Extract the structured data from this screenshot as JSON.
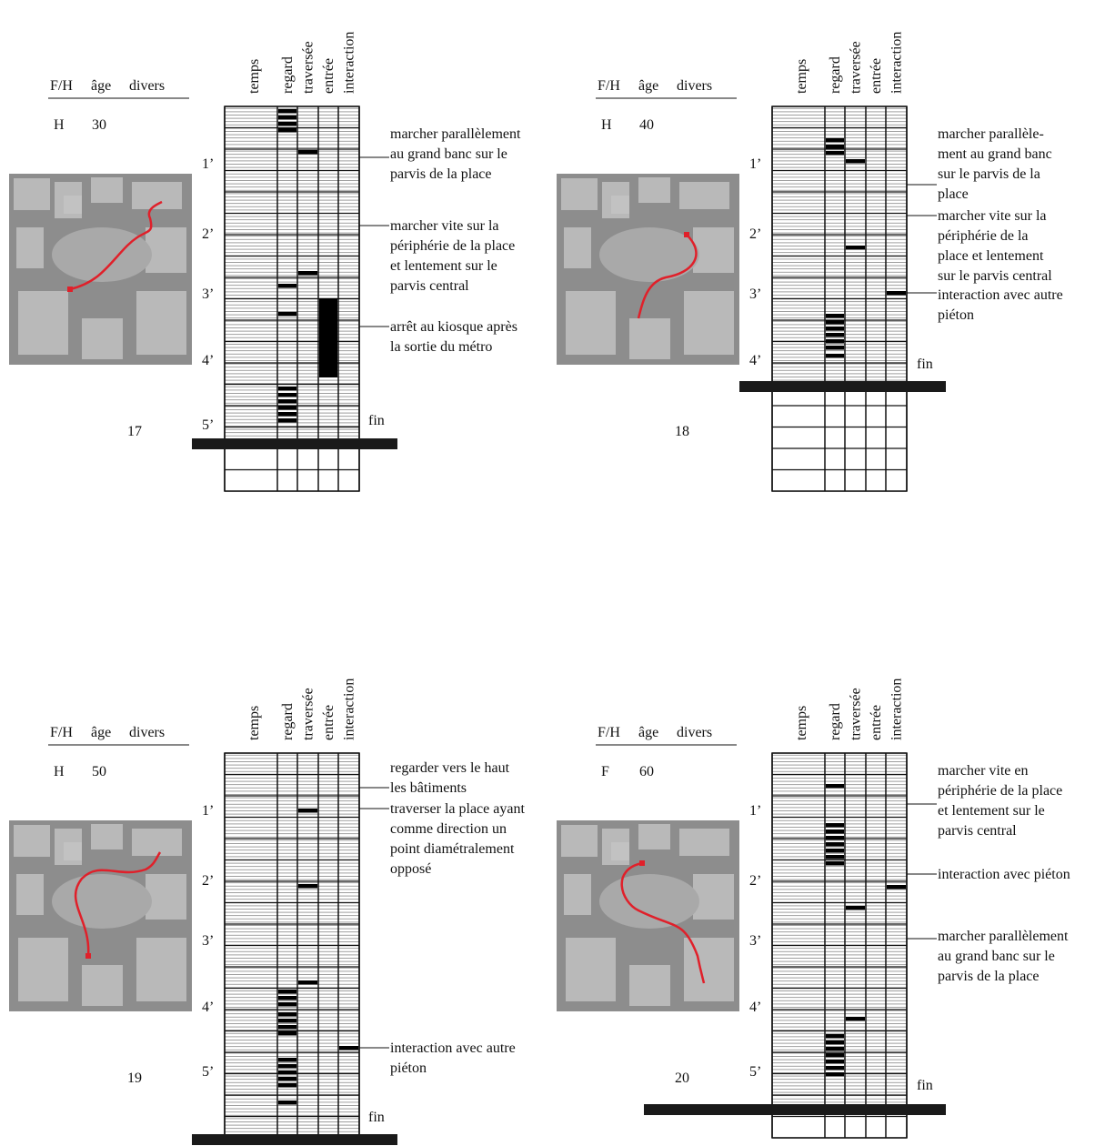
{
  "columns": [
    "temps",
    "regard",
    "traversée",
    "entrée",
    "interaction"
  ],
  "profile_headers": [
    "F/H",
    "âge",
    "divers"
  ],
  "fin": "fin",
  "panels": [
    {
      "number": "17",
      "sex": "H",
      "age": "30",
      "times": [
        "1’",
        "2’",
        "3’",
        "4’",
        "5’"
      ],
      "annotations": [
        {
          "lines": [
            "marcher parallèlement",
            "au grand banc sur le",
            "parvis de la place"
          ]
        },
        {
          "lines": [
            "marcher vite sur la",
            "périphérie de la place",
            "et lentement sur le",
            "parvis central"
          ]
        },
        {
          "lines": [
            "arrêt au kiosque après",
            "la sortie du métro"
          ]
        }
      ]
    },
    {
      "number": "18",
      "sex": "H",
      "age": "40",
      "times": [
        "1’",
        "2’",
        "3’",
        "4’"
      ],
      "annotations": [
        {
          "lines": [
            "marcher parallèle-",
            "ment au grand banc",
            "sur le parvis de la",
            "place"
          ]
        },
        {
          "lines": [
            "marcher vite sur la",
            "périphérie de la",
            "place et lentement",
            "sur le parvis central"
          ]
        },
        {
          "lines": [
            "interaction avec autre",
            "piéton"
          ]
        }
      ]
    },
    {
      "number": "19",
      "sex": "H",
      "age": "50",
      "times": [
        "1’",
        "2’",
        "3’",
        "4’",
        "5’"
      ],
      "annotations": [
        {
          "lines": [
            "regarder vers le haut",
            "les bâtiments"
          ]
        },
        {
          "lines": [
            "traverser la place ayant",
            "comme direction un",
            "point diamétralement",
            "opposé"
          ]
        },
        {
          "lines": [
            "interaction avec autre",
            "piéton"
          ]
        }
      ]
    },
    {
      "number": "20",
      "sex": "F",
      "age": "60",
      "times": [
        "1’",
        "2’",
        "3’",
        "4’",
        "5’"
      ],
      "annotations": [
        {
          "lines": [
            "marcher vite en",
            "périphérie de la place",
            "et lentement sur le",
            "parvis central"
          ]
        },
        {
          "lines": [
            "interaction avec piéton"
          ]
        },
        {
          "lines": [
            "marcher parallèlement",
            "au grand banc sur le",
            "parvis de la place"
          ]
        }
      ]
    }
  ]
}
